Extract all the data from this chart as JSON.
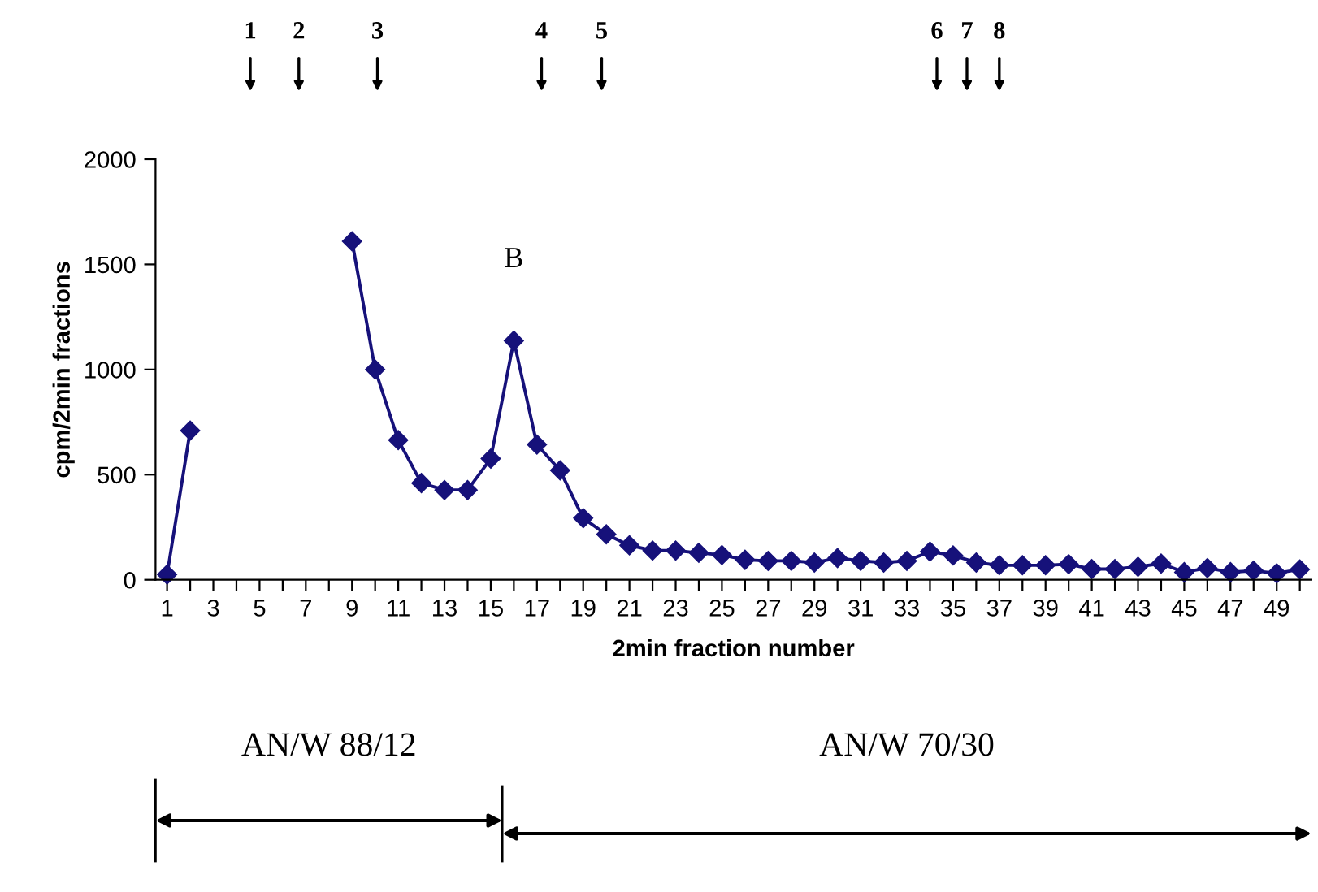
{
  "chart_data": {
    "type": "line",
    "xlabel": "2min fraction number",
    "ylabel": "cpm/2min fractions",
    "x": [
      1,
      2,
      3,
      4,
      5,
      6,
      7,
      8,
      9,
      10,
      11,
      12,
      13,
      14,
      15,
      16,
      17,
      18,
      19,
      20,
      21,
      22,
      23,
      24,
      25,
      26,
      27,
      28,
      29,
      30,
      31,
      32,
      33,
      34,
      35,
      36,
      37,
      38,
      39,
      40,
      41,
      42,
      43,
      44,
      45,
      46,
      47,
      48,
      49,
      50
    ],
    "series": [
      {
        "color": "#16117a",
        "values": [
          25,
          710,
          null,
          null,
          null,
          null,
          null,
          null,
          1610,
          1000,
          664,
          460,
          427,
          427,
          576,
          1137,
          643,
          520,
          293,
          216,
          164,
          139,
          139,
          128,
          118,
          95,
          90,
          90,
          82,
          103,
          90,
          82,
          90,
          134,
          116,
          82,
          69,
          69,
          69,
          74,
          51,
          51,
          62,
          77,
          36,
          56,
          36,
          43,
          31,
          49
        ]
      }
    ],
    "marker": "diamond",
    "line_style": "solid",
    "grid": false,
    "legend": false,
    "xlim": [
      0.5,
      50.5
    ],
    "ylim": [
      0,
      2000
    ],
    "xticks": [
      1,
      {
        "value": 2,
        "label": null
      },
      3,
      {
        "value": 4,
        "label": null
      },
      5,
      {
        "value": 6,
        "label": null
      },
      7,
      {
        "value": 8,
        "label": null
      },
      9,
      {
        "value": 10,
        "label": null
      },
      11,
      {
        "value": 12,
        "label": null
      },
      13,
      {
        "value": 14,
        "label": null
      },
      15,
      {
        "value": 16,
        "label": null
      },
      17,
      {
        "value": 18,
        "label": null
      },
      19,
      {
        "value": 20,
        "label": null
      },
      21,
      {
        "value": 22,
        "label": null
      },
      23,
      {
        "value": 24,
        "label": null
      },
      25,
      {
        "value": 26,
        "label": null
      },
      27,
      {
        "value": 28,
        "label": null
      },
      29,
      {
        "value": 30,
        "label": null
      },
      31,
      {
        "value": 32,
        "label": null
      },
      33,
      {
        "value": 34,
        "label": null
      },
      35,
      {
        "value": 36,
        "label": null
      },
      37,
      {
        "value": 38,
        "label": null
      },
      39,
      {
        "value": 40,
        "label": null
      },
      41,
      {
        "value": 42,
        "label": null
      },
      43,
      {
        "value": 44,
        "label": null
      },
      45,
      {
        "value": 46,
        "label": null
      },
      47,
      {
        "value": 48,
        "label": null
      },
      49,
      {
        "value": 50,
        "label": null
      }
    ],
    "yticks": [
      0,
      500,
      1000,
      1500,
      2000
    ],
    "annotations": [
      "B",
      "1",
      "2",
      "3",
      "4",
      "5",
      "6",
      "7",
      "8",
      "AN/W 88/12",
      "AN/W 70/30"
    ]
  }
}
